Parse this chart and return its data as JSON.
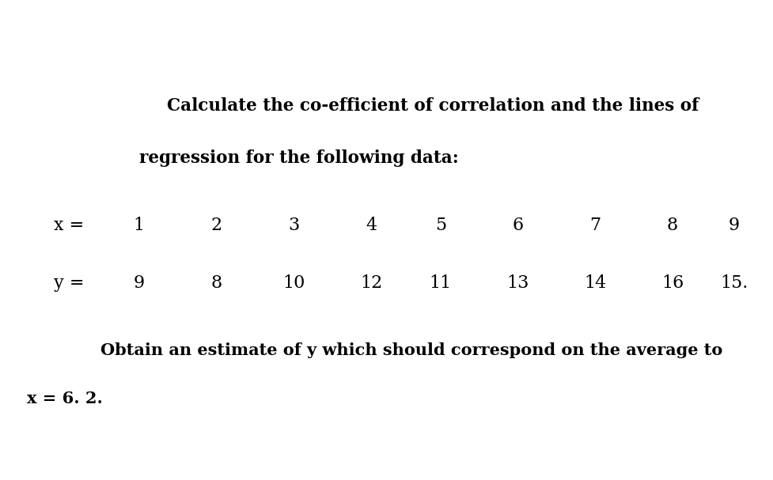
{
  "bg_color": "#e8e8e8",
  "content_bg": "#ffffff",
  "title_line1": "Calculate the co-efficient of correlation and the lines of",
  "title_line2": "regression for the following data:",
  "x_label": "x =",
  "x_values": [
    "1",
    "2",
    "3",
    "4",
    "5",
    "6",
    "7",
    "8",
    "9"
  ],
  "y_label": "y =",
  "y_values": [
    "9",
    "8",
    "10",
    "12",
    "11",
    "13",
    "14",
    "16",
    "15."
  ],
  "footer_line1": "Obtain an estimate of y which should correspond on the average to",
  "footer_line2": "x = 6. 2.",
  "title_fontsize": 15.5,
  "data_fontsize": 16,
  "footer_fontsize": 15
}
